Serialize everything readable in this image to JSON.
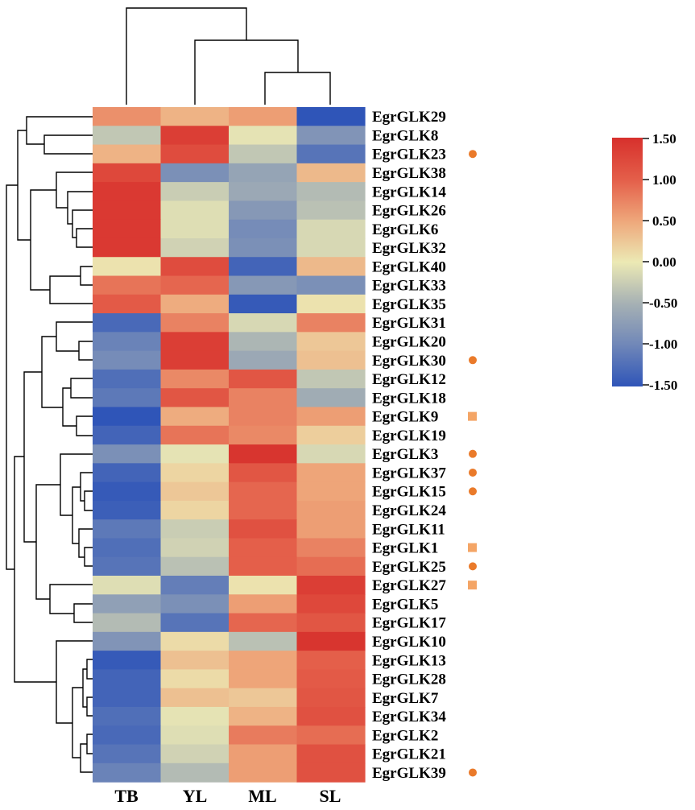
{
  "chart_data": {
    "type": "heatmap",
    "title": "",
    "columns": [
      "TB",
      "YL",
      "ML",
      "SL"
    ],
    "rows": [
      {
        "gene": "EgrGLK29",
        "values": [
          0.65,
          0.4,
          0.55,
          -1.5
        ],
        "marker": ""
      },
      {
        "gene": "EgrGLK8",
        "values": [
          -0.3,
          1.35,
          -0.05,
          -0.85
        ],
        "marker": ""
      },
      {
        "gene": "EgrGLK23",
        "values": [
          0.4,
          1.2,
          -0.3,
          -1.2
        ],
        "marker": "circle"
      },
      {
        "gene": "EgrGLK38",
        "values": [
          1.25,
          -0.9,
          -0.65,
          0.35
        ],
        "marker": ""
      },
      {
        "gene": "EgrGLK14",
        "values": [
          1.4,
          -0.25,
          -0.6,
          -0.4
        ],
        "marker": ""
      },
      {
        "gene": "EgrGLK26",
        "values": [
          1.4,
          -0.1,
          -0.8,
          -0.35
        ],
        "marker": ""
      },
      {
        "gene": "EgrGLK6",
        "values": [
          1.4,
          -0.1,
          -0.95,
          -0.15
        ],
        "marker": ""
      },
      {
        "gene": "EgrGLK32",
        "values": [
          1.4,
          -0.2,
          -0.9,
          -0.15
        ],
        "marker": ""
      },
      {
        "gene": "EgrGLK40",
        "values": [
          0.05,
          1.2,
          -1.35,
          0.35
        ],
        "marker": ""
      },
      {
        "gene": "EgrGLK33",
        "values": [
          0.85,
          0.95,
          -0.8,
          -0.9
        ],
        "marker": ""
      },
      {
        "gene": "EgrGLK35",
        "values": [
          1.05,
          0.45,
          -1.45,
          0.05
        ],
        "marker": ""
      },
      {
        "gene": "EgrGLK31",
        "values": [
          -1.3,
          0.75,
          -0.15,
          0.75
        ],
        "marker": ""
      },
      {
        "gene": "EgrGLK20",
        "values": [
          -1.05,
          1.35,
          -0.45,
          0.25
        ],
        "marker": ""
      },
      {
        "gene": "EgrGLK30",
        "values": [
          -0.95,
          1.35,
          -0.6,
          0.3
        ],
        "marker": "circle"
      },
      {
        "gene": "EgrGLK12",
        "values": [
          -1.25,
          0.7,
          1.1,
          -0.3
        ],
        "marker": ""
      },
      {
        "gene": "EgrGLK18",
        "values": [
          -1.15,
          1.1,
          0.75,
          -0.55
        ],
        "marker": ""
      },
      {
        "gene": "EgrGLK9",
        "values": [
          -1.5,
          0.45,
          0.75,
          0.55
        ],
        "marker": "square"
      },
      {
        "gene": "EgrGLK19",
        "values": [
          -1.35,
          0.85,
          0.7,
          0.2
        ],
        "marker": ""
      },
      {
        "gene": "EgrGLK3",
        "values": [
          -0.9,
          -0.05,
          1.45,
          -0.15
        ],
        "marker": "circle"
      },
      {
        "gene": "EgrGLK37",
        "values": [
          -1.35,
          0.15,
          1.1,
          0.5
        ],
        "marker": "circle"
      },
      {
        "gene": "EgrGLK15",
        "values": [
          -1.45,
          0.25,
          0.95,
          0.5
        ],
        "marker": "circle"
      },
      {
        "gene": "EgrGLK24",
        "values": [
          -1.4,
          0.15,
          0.95,
          0.55
        ],
        "marker": ""
      },
      {
        "gene": "EgrGLK11",
        "values": [
          -1.15,
          -0.25,
          1.15,
          0.55
        ],
        "marker": ""
      },
      {
        "gene": "EgrGLK1",
        "values": [
          -1.25,
          -0.2,
          1.0,
          0.75
        ],
        "marker": "square"
      },
      {
        "gene": "EgrGLK25",
        "values": [
          -1.2,
          -0.35,
          1.0,
          0.9
        ],
        "marker": "circle"
      },
      {
        "gene": "EgrGLK27",
        "values": [
          -0.1,
          -1.1,
          0.05,
          1.35
        ],
        "marker": "square"
      },
      {
        "gene": "EgrGLK5",
        "values": [
          -0.7,
          -0.9,
          0.55,
          1.25
        ],
        "marker": ""
      },
      {
        "gene": "EgrGLK17",
        "values": [
          -0.4,
          -1.2,
          0.95,
          1.1
        ],
        "marker": ""
      },
      {
        "gene": "EgrGLK10",
        "values": [
          -0.85,
          0.1,
          -0.35,
          1.45
        ],
        "marker": ""
      },
      {
        "gene": "EgrGLK13",
        "values": [
          -1.45,
          0.3,
          0.5,
          1.0
        ],
        "marker": ""
      },
      {
        "gene": "EgrGLK28",
        "values": [
          -1.35,
          0.1,
          0.5,
          1.05
        ],
        "marker": ""
      },
      {
        "gene": "EgrGLK7",
        "values": [
          -1.35,
          0.3,
          0.25,
          1.1
        ],
        "marker": ""
      },
      {
        "gene": "EgrGLK34",
        "values": [
          -1.25,
          -0.05,
          0.4,
          1.15
        ],
        "marker": ""
      },
      {
        "gene": "EgrGLK2",
        "values": [
          -1.3,
          -0.1,
          0.8,
          0.9
        ],
        "marker": ""
      },
      {
        "gene": "EgrGLK21",
        "values": [
          -1.2,
          -0.2,
          0.55,
          1.15
        ],
        "marker": ""
      },
      {
        "gene": "EgrGLK39",
        "values": [
          -1.05,
          -0.4,
          0.55,
          1.15
        ],
        "marker": "circle"
      }
    ],
    "colorbar": {
      "min": -1.5,
      "max": 1.5,
      "tick_labels": [
        "1.50",
        "1.00",
        "0.50",
        "0.00",
        "-0.50",
        "-1.00",
        "-1.50"
      ],
      "colors": [
        "#d7302c",
        "#e45f4a",
        "#eea579",
        "#ece9b4",
        "#a5b0b4",
        "#7188b8",
        "#2f55b8"
      ]
    },
    "marker_color": "#ea7a2a",
    "square_marker_color": "#f4a566",
    "column_dendrogram": "((TB),((YL),((ML),(SL))))",
    "row_dendrogram": "clustered"
  }
}
